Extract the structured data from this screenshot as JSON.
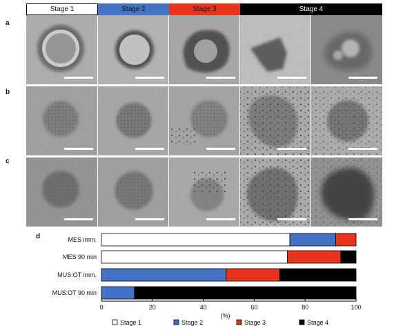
{
  "panels": {
    "a": "a",
    "b": "b",
    "c": "c",
    "d": "d"
  },
  "stage_headers": [
    {
      "label": "Stage 1",
      "bg": "#ffffff",
      "fg": "#111111"
    },
    {
      "label": "Stage 2",
      "bg": "#4472c4",
      "fg": "#111111"
    },
    {
      "label": "Stage 3",
      "bg": "#e8341c",
      "fg": "#111111"
    },
    {
      "label": "Stage 4",
      "bg": "#000000",
      "fg": "#ffffff"
    }
  ],
  "micrograph_rows": [
    {
      "row": "a",
      "stages": [
        "Stage 1",
        "Stage 2",
        "Stage 3",
        "Stage 4",
        "Stage 4"
      ]
    },
    {
      "row": "b",
      "stages": [
        "Stage 1",
        "Stage 2",
        "Stage 3",
        "Stage 4",
        "Stage 4"
      ]
    },
    {
      "row": "c",
      "stages": [
        "Stage 1",
        "Stage 2",
        "Stage 3",
        "Stage 4",
        "Stage 4"
      ]
    }
  ],
  "chart_data": {
    "type": "bar",
    "stacked": true,
    "orientation": "horizontal",
    "categories": [
      "MES imm.",
      "MES 90 min",
      "MUS:OT imm.",
      "MUS:OT 90 min"
    ],
    "series": [
      {
        "name": "Stage 1",
        "color": "#ffffff",
        "values": [
          74,
          73,
          0,
          0
        ]
      },
      {
        "name": "Stage 2",
        "color": "#4472c4",
        "values": [
          18,
          0,
          49,
          13
        ]
      },
      {
        "name": "Stage 3",
        "color": "#e8341c",
        "values": [
          8,
          21,
          21,
          0
        ]
      },
      {
        "name": "Stage 4",
        "color": "#000000",
        "values": [
          0,
          6,
          30,
          87
        ]
      }
    ],
    "xlim": [
      0,
      100
    ],
    "xticks": [
      "0",
      "20",
      "40",
      "60",
      "80",
      "100"
    ],
    "xlabel": "(%)",
    "ylabel": "",
    "title": "",
    "grid": false,
    "legend": "bottom"
  }
}
